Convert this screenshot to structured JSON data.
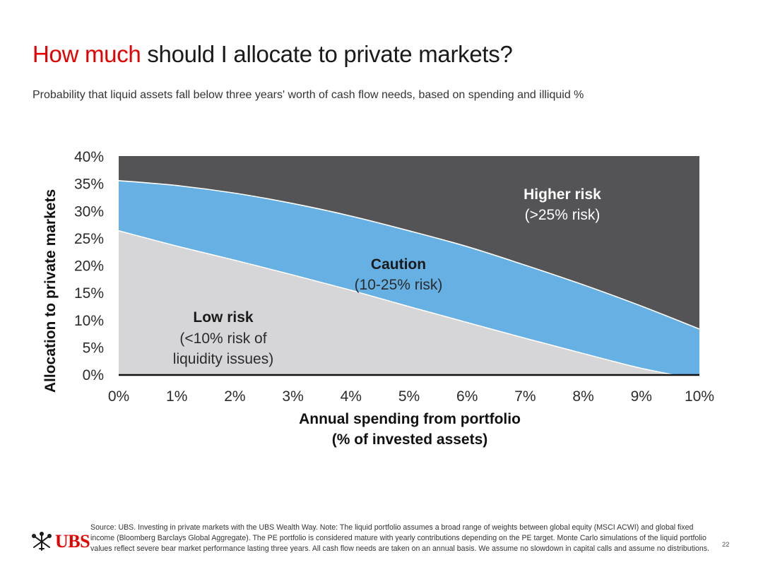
{
  "header": {
    "title_accent": "How much",
    "title_rest": "should I allocate to private markets?",
    "subtitle": "Probability that liquid assets fall below three years' worth of cash flow needs, based on spending and illiquid %"
  },
  "chart_data": {
    "type": "area",
    "xlabel_line1": "Annual spending from portfolio",
    "xlabel_line2": "(% of invested assets)",
    "ylabel": "Allocation to private markets",
    "x_ticks": [
      "0%",
      "1%",
      "2%",
      "3%",
      "4%",
      "5%",
      "6%",
      "7%",
      "8%",
      "9%",
      "10%"
    ],
    "y_ticks": [
      "0%",
      "5%",
      "10%",
      "15%",
      "20%",
      "25%",
      "30%",
      "35%",
      "40%"
    ],
    "xlim": [
      0,
      10
    ],
    "ylim": [
      0,
      40
    ],
    "grid": false,
    "x": [
      0,
      1,
      2,
      3,
      4,
      5,
      6,
      7,
      8,
      9,
      10
    ],
    "low_boundary": [
      26.3,
      23.5,
      20.9,
      18.2,
      15.4,
      12.4,
      9.5,
      6.6,
      3.8,
      1.1,
      -1.0
    ],
    "high_boundary": [
      35.5,
      34.6,
      33.2,
      31.3,
      29.0,
      26.3,
      23.4,
      20.0,
      16.4,
      12.5,
      8.3
    ],
    "zones": [
      {
        "key": "low",
        "name": "Low risk",
        "desc_lines": [
          "(<10% risk of",
          "liquidity issues)"
        ],
        "color": "#d6d5d8"
      },
      {
        "key": "caution",
        "name": "Caution",
        "desc_lines": [
          "(10-25% risk)"
        ],
        "color": "#66b0e3"
      },
      {
        "key": "high",
        "name": "Higher risk",
        "desc_lines": [
          "(>25% risk)"
        ],
        "color": "#545356"
      }
    ]
  },
  "footer": {
    "logo_text": "UBS",
    "logo_icon": "ubs-keys-icon",
    "source": "Source: UBS. Investing in private markets with the UBS Wealth Way. Note: The liquid portfolio assumes a broad range of weights between global equity (MSCI ACWI) and global fixed income (Bloomberg Barclays Global Aggregate). The PE portfolio is considered mature with yearly contributions depending on the PE target. Monte Carlo simulations of the liquid portfolio values reflect severe bear market performance lasting three years. All cash flow needs are taken on an annual basis. We assume no slowdown in capital calls and assume no distributions.",
    "page_number": "22"
  }
}
